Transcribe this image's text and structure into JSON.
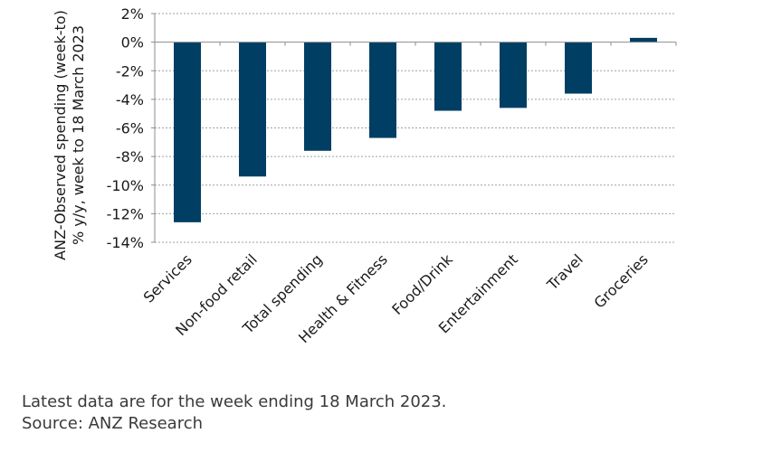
{
  "chart_data": {
    "type": "bar",
    "ylabel_lines": [
      "ANZ-Observed spending (week-to)",
      "% y/y, week to 18 March 2023"
    ],
    "categories": [
      "Services",
      "Non-food retail",
      "Total spending",
      "Health & Fitness",
      "Food/Drink",
      "Entertainment",
      "Travel",
      "Groceries"
    ],
    "values": [
      -12.6,
      -9.4,
      -7.6,
      -6.7,
      -4.8,
      -4.6,
      -3.6,
      0.3
    ],
    "ylim": [
      -14,
      2
    ],
    "yticks": [
      2,
      0,
      -2,
      -4,
      -6,
      -8,
      -10,
      -12,
      -14
    ],
    "ytick_labels": [
      "2%",
      "0%",
      "-2%",
      "-4%",
      "-6%",
      "-8%",
      "-10%",
      "-12%",
      "-14%"
    ],
    "grid": true,
    "bar_color": "#003f63"
  },
  "footnotes": {
    "line1": "Latest data are for the week ending 18 March 2023.",
    "line2": "Source: ANZ Research"
  }
}
